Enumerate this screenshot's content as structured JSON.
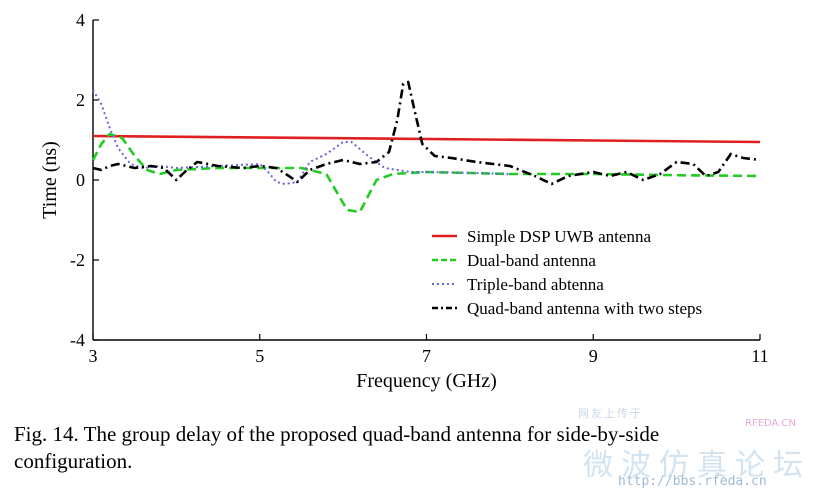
{
  "chart_data": {
    "type": "line",
    "xlabel": "Frequency (GHz)",
    "ylabel": "Time (ns)",
    "xlim": [
      3,
      11
    ],
    "ylim": [
      -4,
      4
    ],
    "xticks": [
      3,
      5,
      7,
      9,
      11
    ],
    "yticks": [
      -4,
      -2,
      0,
      2,
      4
    ],
    "grid": false,
    "legend_position": "lower-right",
    "series": [
      {
        "name": "Simple DSP UWB antenna",
        "color": "#e02020",
        "style": "solid",
        "x": [
          3,
          11
        ],
        "y": [
          1.1,
          0.95
        ]
      },
      {
        "name": "Dual-band antenna",
        "color": "#22cc22",
        "style": "dashed",
        "x": [
          3.0,
          3.1,
          3.2,
          3.35,
          3.5,
          3.65,
          3.8,
          4.0,
          4.5,
          5.0,
          5.5,
          5.8,
          5.95,
          6.05,
          6.2,
          6.3,
          6.4,
          6.6,
          7.0,
          8.0,
          9.0,
          10.0,
          11.0
        ],
        "y": [
          0.5,
          0.9,
          1.15,
          1.05,
          0.6,
          0.25,
          0.15,
          0.25,
          0.3,
          0.3,
          0.3,
          0.15,
          -0.4,
          -0.75,
          -0.8,
          -0.4,
          0.0,
          0.15,
          0.2,
          0.15,
          0.15,
          0.12,
          0.1
        ]
      },
      {
        "name": "Triple-band abtenna",
        "color": "#6666dd",
        "style": "dotted",
        "x": [
          3.0,
          3.1,
          3.2,
          3.3,
          3.45,
          3.6,
          3.8,
          4.0,
          4.5,
          5.0,
          5.1,
          5.2,
          5.3,
          5.45,
          5.6,
          5.8,
          6.0,
          6.1,
          6.3,
          6.5,
          6.8,
          7.0,
          7.5,
          8.0
        ],
        "y": [
          2.25,
          1.9,
          1.3,
          0.8,
          0.4,
          0.3,
          0.35,
          0.3,
          0.35,
          0.4,
          0.2,
          -0.05,
          -0.1,
          -0.05,
          0.45,
          0.65,
          0.95,
          0.95,
          0.6,
          0.3,
          0.2,
          0.2,
          0.18,
          0.15
        ]
      },
      {
        "name": "Quad-band antenna with two steps",
        "color": "#000000",
        "style": "dashdot",
        "x": [
          3.0,
          3.1,
          3.2,
          3.3,
          3.5,
          3.7,
          3.85,
          4.0,
          4.1,
          4.25,
          4.5,
          4.8,
          5.0,
          5.2,
          5.35,
          5.45,
          5.6,
          5.8,
          6.0,
          6.2,
          6.4,
          6.55,
          6.65,
          6.72,
          6.78,
          6.85,
          6.95,
          7.1,
          7.3,
          7.6,
          8.0,
          8.3,
          8.5,
          8.7,
          9.0,
          9.2,
          9.4,
          9.6,
          9.8,
          10.0,
          10.2,
          10.35,
          10.5,
          10.65,
          10.8,
          11.0
        ],
        "y": [
          0.3,
          0.25,
          0.35,
          0.4,
          0.3,
          0.35,
          0.3,
          0.0,
          0.2,
          0.45,
          0.35,
          0.3,
          0.35,
          0.3,
          0.1,
          -0.05,
          0.25,
          0.4,
          0.5,
          0.4,
          0.45,
          0.7,
          1.5,
          2.4,
          2.45,
          1.8,
          0.9,
          0.6,
          0.55,
          0.45,
          0.35,
          0.1,
          -0.1,
          0.1,
          0.2,
          0.1,
          0.2,
          0.0,
          0.15,
          0.45,
          0.4,
          0.1,
          0.2,
          0.65,
          0.55,
          0.5
        ]
      }
    ]
  },
  "caption": {
    "line1": "Fig. 14.   The group delay of the proposed quad-band antenna for side-by-side",
    "line2": "configuration."
  },
  "watermark": {
    "small": "网友上传于",
    "logo": "RFEDA.CN",
    "chinese": "微波仿真论坛",
    "url": "http://bbs.rfeda.cn"
  }
}
